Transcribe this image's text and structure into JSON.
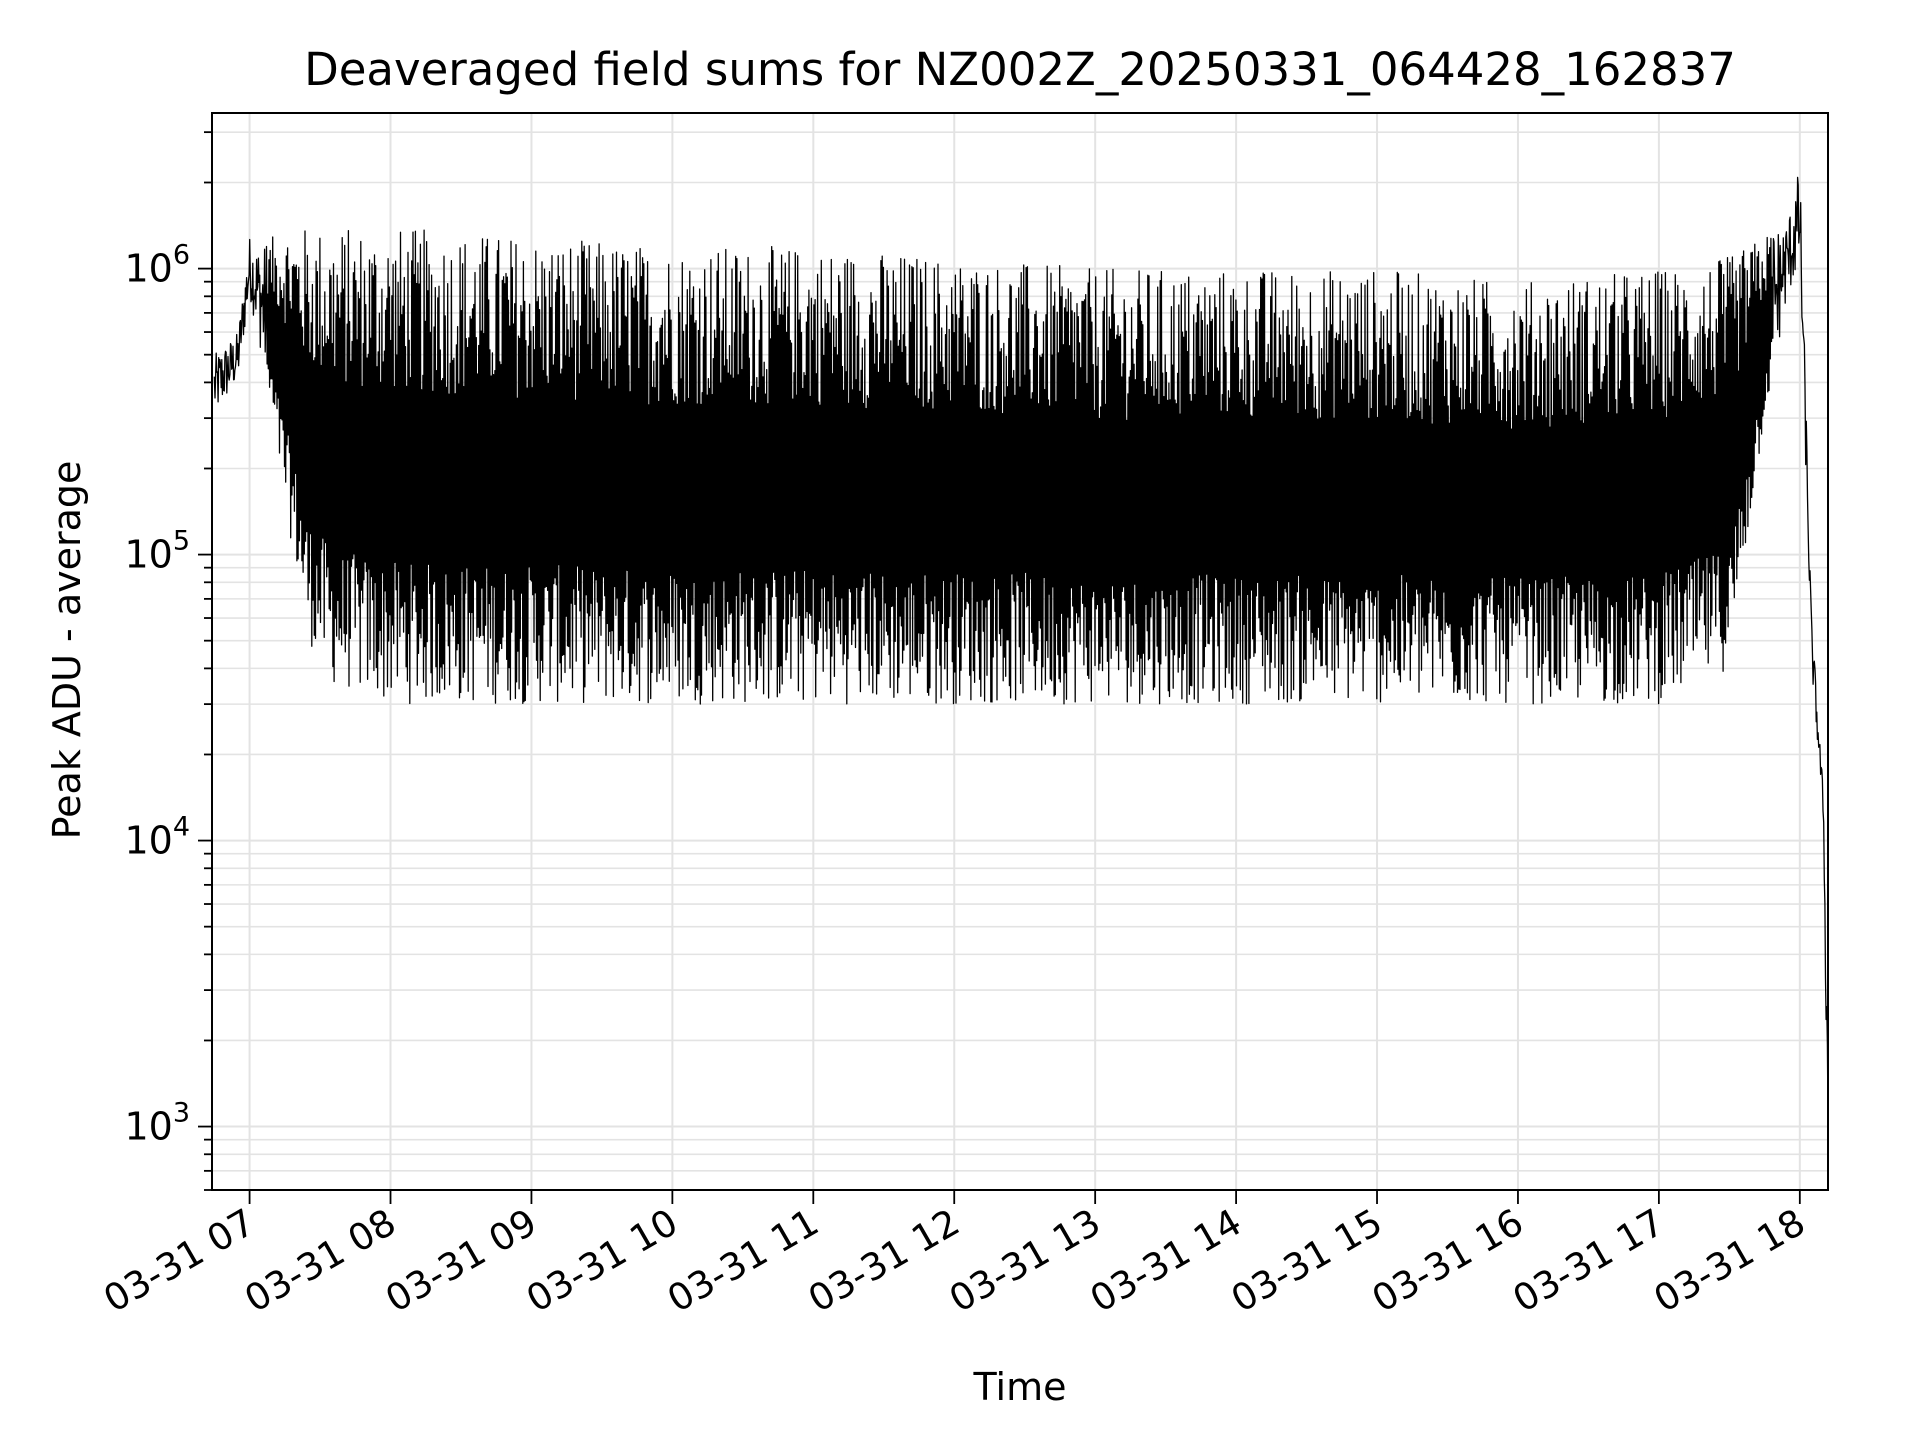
{
  "chart_data": {
    "type": "line",
    "title": "Deaveraged field sums for NZ002Z_20250331_064428_162837",
    "xlabel": "Time",
    "ylabel": "Peak ADU - average",
    "yscale": "log",
    "xlim": [
      "2025-03-31 06:44",
      "2025-03-31 18:12"
    ],
    "ylim": [
      600,
      3500000
    ],
    "grid": true,
    "line_color": "#000000",
    "x_tick_labels": [
      "03-31 07",
      "03-31 08",
      "03-31 09",
      "03-31 10",
      "03-31 11",
      "03-31 12",
      "03-31 13",
      "03-31 14",
      "03-31 15",
      "03-31 16",
      "03-31 17",
      "03-31 18"
    ],
    "x_tick_hours": [
      7,
      8,
      9,
      10,
      11,
      12,
      13,
      14,
      15,
      16,
      17,
      18
    ],
    "y_tick_labels": [
      {
        "base": "10",
        "exp": "3",
        "value": 1000
      },
      {
        "base": "10",
        "exp": "4",
        "value": 10000
      },
      {
        "base": "10",
        "exp": "5",
        "value": 100000
      },
      {
        "base": "10",
        "exp": "6",
        "value": 1000000
      }
    ],
    "envelope": {
      "x": [
        "2025-03-31 06:45",
        "2025-03-31 06:55",
        "2025-03-31 07:00",
        "2025-03-31 07:05",
        "2025-03-31 07:15",
        "2025-03-31 07:25",
        "2025-03-31 07:35",
        "2025-03-31 08:00",
        "2025-03-31 09:00",
        "2025-03-31 10:00",
        "2025-03-31 11:00",
        "2025-03-31 12:00",
        "2025-03-31 13:00",
        "2025-03-31 14:00",
        "2025-03-31 15:00",
        "2025-03-31 16:00",
        "2025-03-31 17:00",
        "2025-03-31 17:30",
        "2025-03-31 17:45",
        "2025-03-31 17:55",
        "2025-03-31 18:00",
        "2025-03-31 18:05",
        "2025-03-31 18:10",
        "2025-03-31 18:12"
      ],
      "upper": [
        500000,
        600000,
        1300000,
        1200000,
        1400000,
        1400000,
        1400000,
        1400000,
        1300000,
        1200000,
        1200000,
        1100000,
        1000000,
        1000000,
        1000000,
        900000,
        1000000,
        1100000,
        1300000,
        1500000,
        2300000,
        60000,
        15000,
        2000
      ],
      "lower": [
        300000,
        400000,
        800000,
        500000,
        150000,
        50000,
        35000,
        30000,
        30000,
        30000,
        30000,
        30000,
        30000,
        30000,
        30000,
        30000,
        30000,
        40000,
        300000,
        800000,
        1000000,
        40000,
        12000,
        700
      ]
    }
  }
}
